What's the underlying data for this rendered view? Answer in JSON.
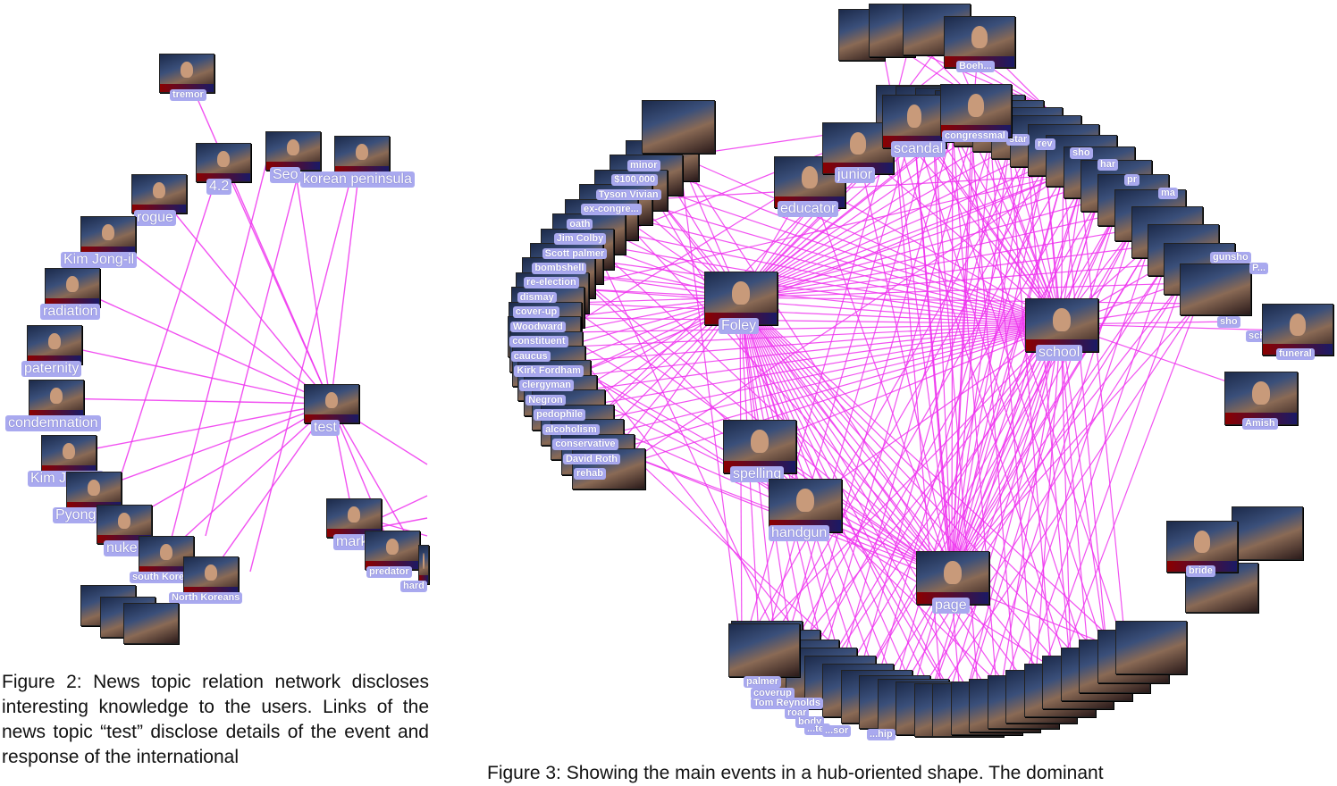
{
  "colors": {
    "edge": "#ee33ee",
    "label_bg": "#a9a9ef",
    "label_text": "#ffffff"
  },
  "left_graph": {
    "center": {
      "label": "test"
    },
    "nodes": [
      {
        "label": "tremor"
      },
      {
        "label": "4.2"
      },
      {
        "label": "Seo"
      },
      {
        "label": "korean peninsula"
      },
      {
        "label": "rogue"
      },
      {
        "label": "Kim Jong-il"
      },
      {
        "label": "radiation"
      },
      {
        "label": "paternity"
      },
      {
        "label": "condemnation"
      },
      {
        "label": "Kim Jong Il"
      },
      {
        "label": "Pyongyang"
      },
      {
        "label": "nuke"
      },
      {
        "label": "south Korea"
      },
      {
        "label": "North Koreans"
      },
      {
        "label": "mark"
      },
      {
        "label": "predator"
      },
      {
        "label": "hard"
      }
    ]
  },
  "right_graph": {
    "hubs": [
      {
        "label": "Foley"
      },
      {
        "label": "school"
      },
      {
        "label": "page"
      },
      {
        "label": "spelling"
      },
      {
        "label": "handgun"
      },
      {
        "label": "educator"
      },
      {
        "label": "junior"
      },
      {
        "label": "scandal"
      },
      {
        "label": "congressmal"
      },
      {
        "label": "Amish"
      },
      {
        "label": "funeral"
      },
      {
        "label": "bride"
      },
      {
        "label": "Boeh..."
      }
    ],
    "left_arc": [
      {
        "label": "minor"
      },
      {
        "label": "$100,000"
      },
      {
        "label": "Tyson Vivian"
      },
      {
        "label": "ex-congre..."
      },
      {
        "label": "oath"
      },
      {
        "label": "Jim Colby"
      },
      {
        "label": "Scott palmer"
      },
      {
        "label": "bombshell"
      },
      {
        "label": "re-election"
      },
      {
        "label": "dismay"
      },
      {
        "label": "cover-up"
      },
      {
        "label": "Woodward"
      },
      {
        "label": "constituent"
      },
      {
        "label": "caucus"
      },
      {
        "label": "Kirk Fordham"
      },
      {
        "label": "clergyman"
      },
      {
        "label": "Negron"
      },
      {
        "label": "pedophile"
      },
      {
        "label": "alcoholism"
      },
      {
        "label": "conservative"
      },
      {
        "label": "David Roth"
      },
      {
        "label": "rehab"
      }
    ],
    "bottom_arc": [
      {
        "label": "palmer"
      },
      {
        "label": "coverup"
      },
      {
        "label": "Tom Reynolds"
      },
      {
        "label": "roar"
      },
      {
        "label": "body"
      },
      {
        "label": "...ter"
      },
      {
        "label": "...sor"
      },
      {
        "label": "...hip"
      }
    ],
    "top_partial": [
      {
        "label": "star"
      },
      {
        "label": "rev"
      },
      {
        "label": "sho"
      },
      {
        "label": "har"
      },
      {
        "label": "pr"
      },
      {
        "label": "ma"
      },
      {
        "label": "gunsho"
      },
      {
        "label": "P..."
      },
      {
        "label": "sho"
      },
      {
        "label": "sch"
      },
      {
        "label": "bas"
      }
    ]
  },
  "caption_left": "Figure 2: News topic relation network discloses interesting knowledge to the users. Links of the news topic “test” disclose details of the event and response of the international",
  "caption_right": "Figure 3: Showing the main events in a hub-oriented shape. The dominant"
}
